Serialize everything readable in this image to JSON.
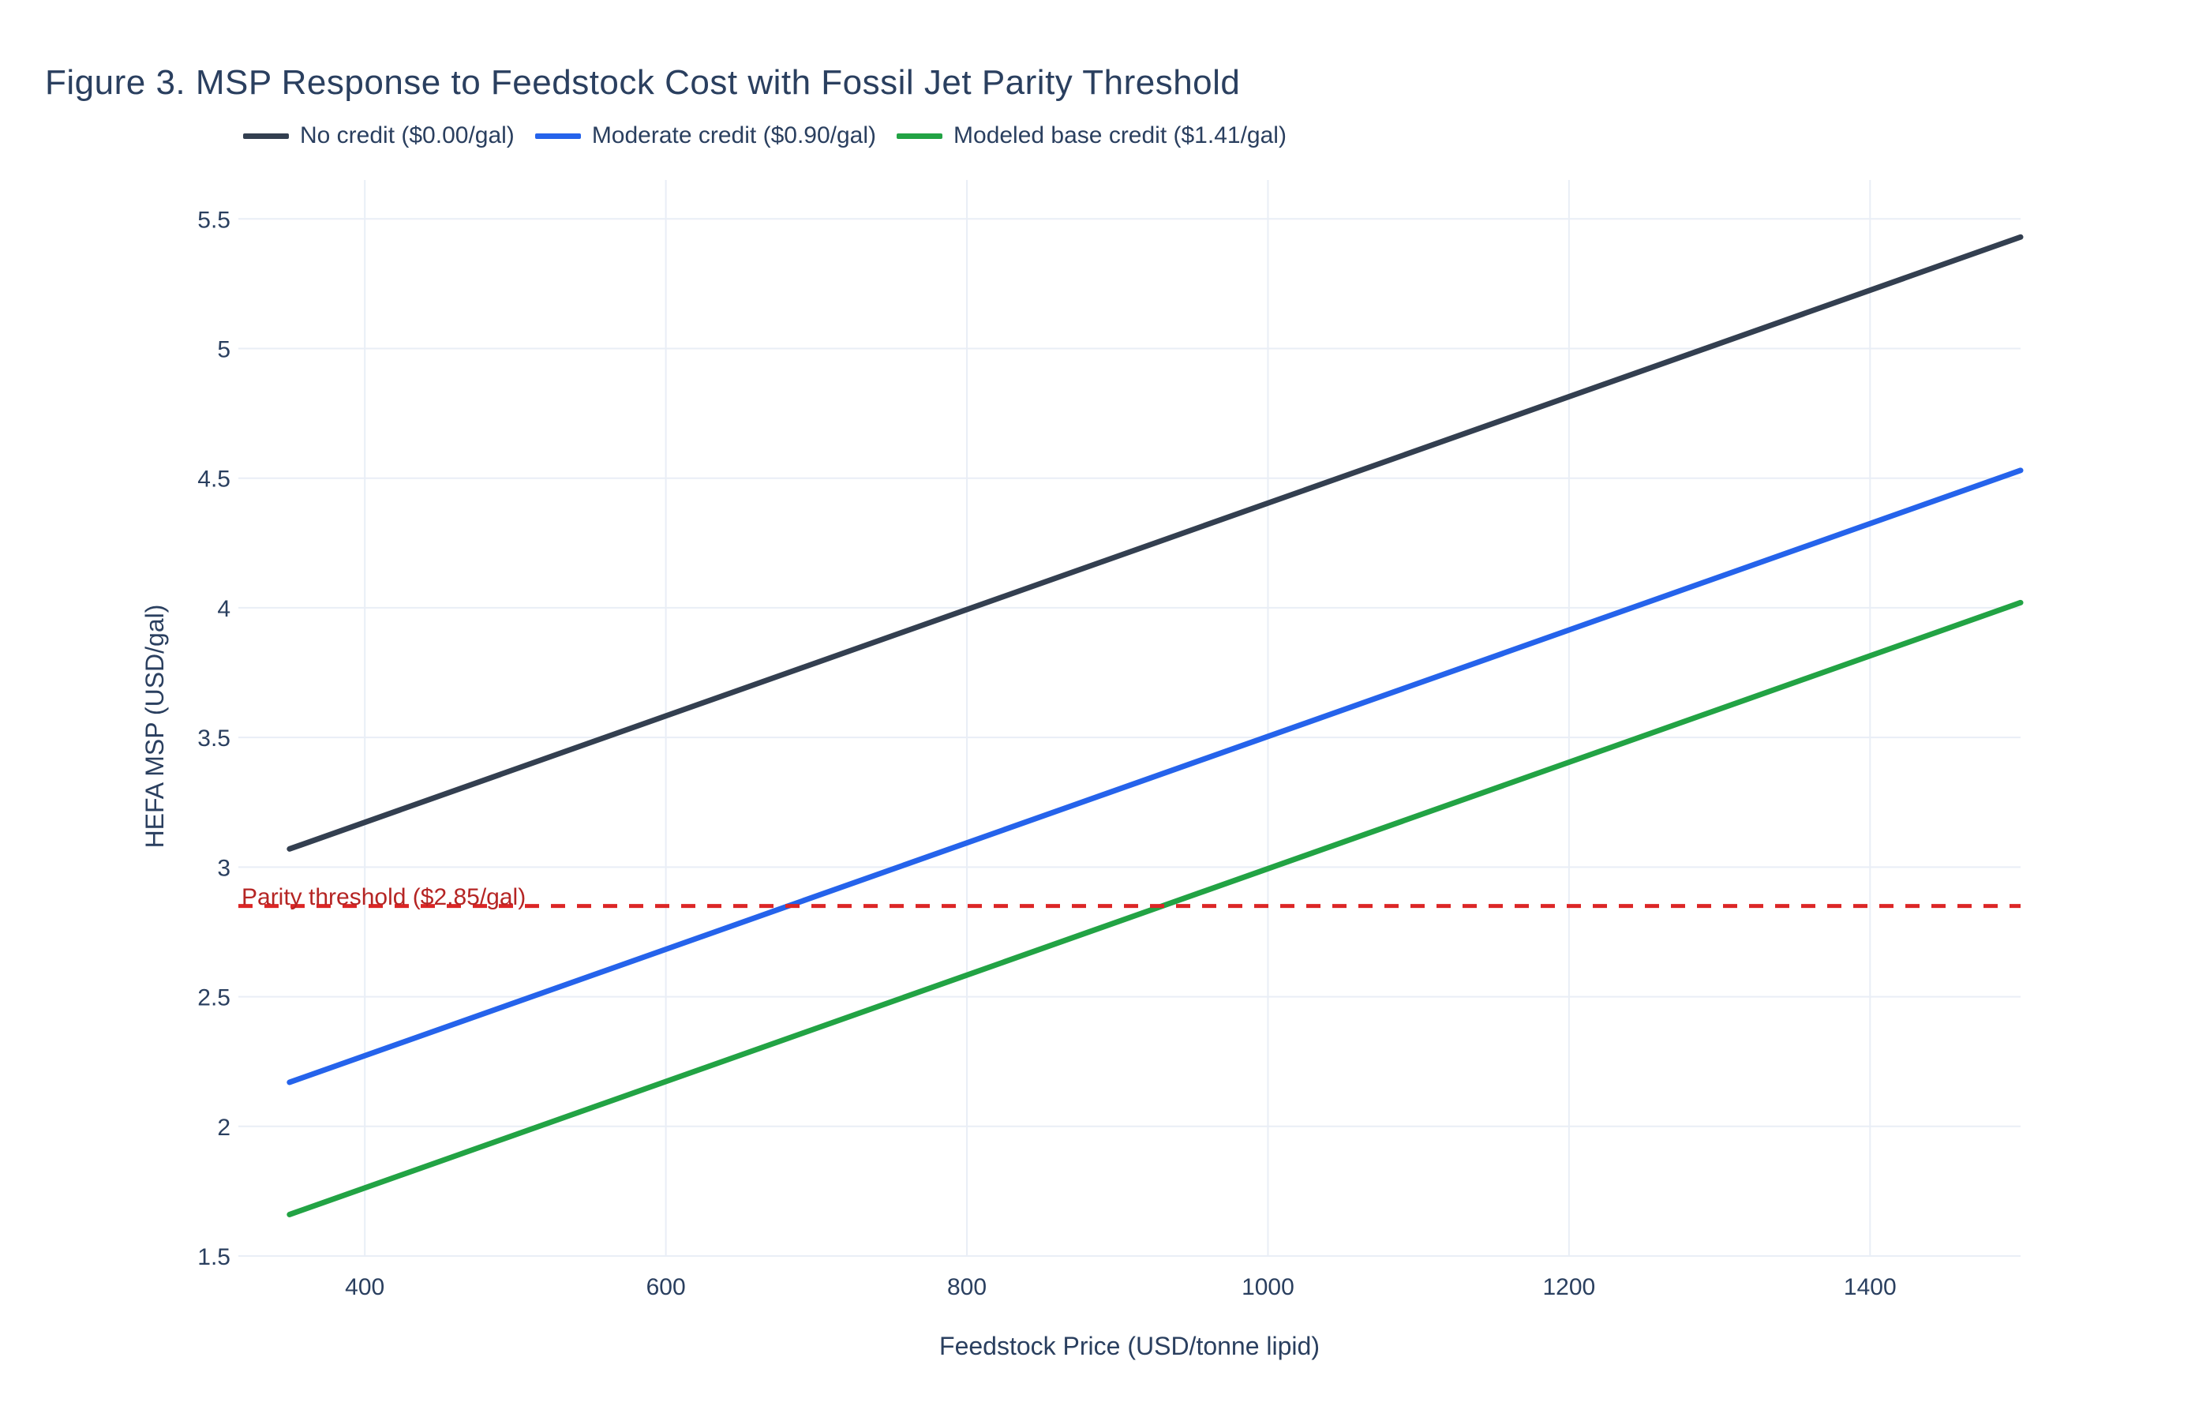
{
  "chart_data": {
    "type": "line",
    "title": "Figure 3. MSP Response to Feedstock Cost with Fossil Jet Parity Threshold",
    "xlabel": "Feedstock Price (USD/tonne lipid)",
    "ylabel": "HEFA MSP (USD/gal)",
    "x_ticks": [
      400,
      600,
      800,
      1000,
      1200,
      1400
    ],
    "y_ticks": [
      1.5,
      2,
      2.5,
      3,
      3.5,
      4,
      4.5,
      5,
      5.5
    ],
    "x_range": [
      316,
      1500
    ],
    "y_range": [
      1.5,
      5.65
    ],
    "grid": true,
    "grid_color": "#e9eef6",
    "background": "#ffffff",
    "legend_position": "top-left-horizontal",
    "x": [
      350,
      1500
    ],
    "series": [
      {
        "name": "No credit ($0.00/gal)",
        "color": "#333f50",
        "credit_usd_per_gal": 0.0,
        "values": [
          3.07,
          5.43
        ]
      },
      {
        "name": "Moderate credit ($0.90/gal)",
        "color": "#2563eb",
        "credit_usd_per_gal": 0.9,
        "values": [
          2.17,
          4.53
        ]
      },
      {
        "name": "Modeled base credit ($1.41/gal)",
        "color": "#22a344",
        "credit_usd_per_gal": 1.41,
        "values": [
          1.66,
          4.02
        ]
      }
    ],
    "threshold": {
      "label": "Parity threshold ($2.85/gal)",
      "value": 2.85,
      "line_color": "#dc2626",
      "text_color": "#b52524",
      "style": "dashed"
    },
    "text_color": "#2a3f5f"
  }
}
